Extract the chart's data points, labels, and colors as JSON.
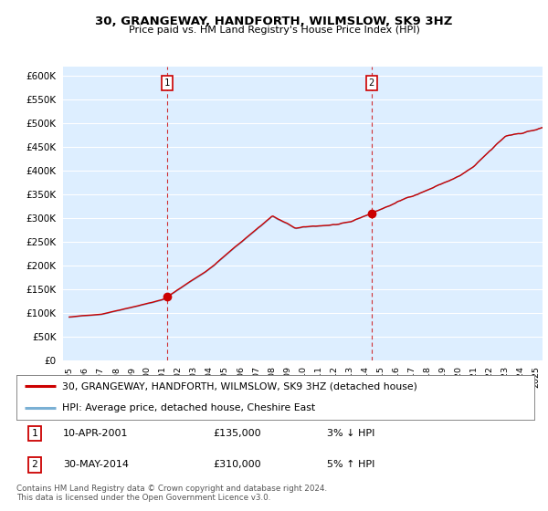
{
  "title": "30, GRANGEWAY, HANDFORTH, WILMSLOW, SK9 3HZ",
  "subtitle": "Price paid vs. HM Land Registry's House Price Index (HPI)",
  "ylim": [
    0,
    620000
  ],
  "yticks": [
    0,
    50000,
    100000,
    150000,
    200000,
    250000,
    300000,
    350000,
    400000,
    450000,
    500000,
    550000,
    600000
  ],
  "sale1_yr": 2001.292,
  "sale1_price": 135000,
  "sale2_yr": 2014.417,
  "sale2_price": 310000,
  "line1_color": "#cc0000",
  "line2_color": "#7ab0d4",
  "marker_color": "#cc0000",
  "vline_color": "#cc0000",
  "annotation1": [
    "1",
    "10-APR-2001",
    "£135,000",
    "3% ↓ HPI"
  ],
  "annotation2": [
    "2",
    "30-MAY-2014",
    "£310,000",
    "5% ↑ HPI"
  ],
  "legend1": "30, GRANGEWAY, HANDFORTH, WILMSLOW, SK9 3HZ (detached house)",
  "legend2": "HPI: Average price, detached house, Cheshire East",
  "footer": "Contains HM Land Registry data © Crown copyright and database right 2024.\nThis data is licensed under the Open Government Licence v3.0.",
  "background_color": "#ffffff",
  "plot_bg_color": "#ddeeff",
  "grid_color": "#ffffff",
  "xlim_left": 1994.6,
  "xlim_right": 2025.4
}
